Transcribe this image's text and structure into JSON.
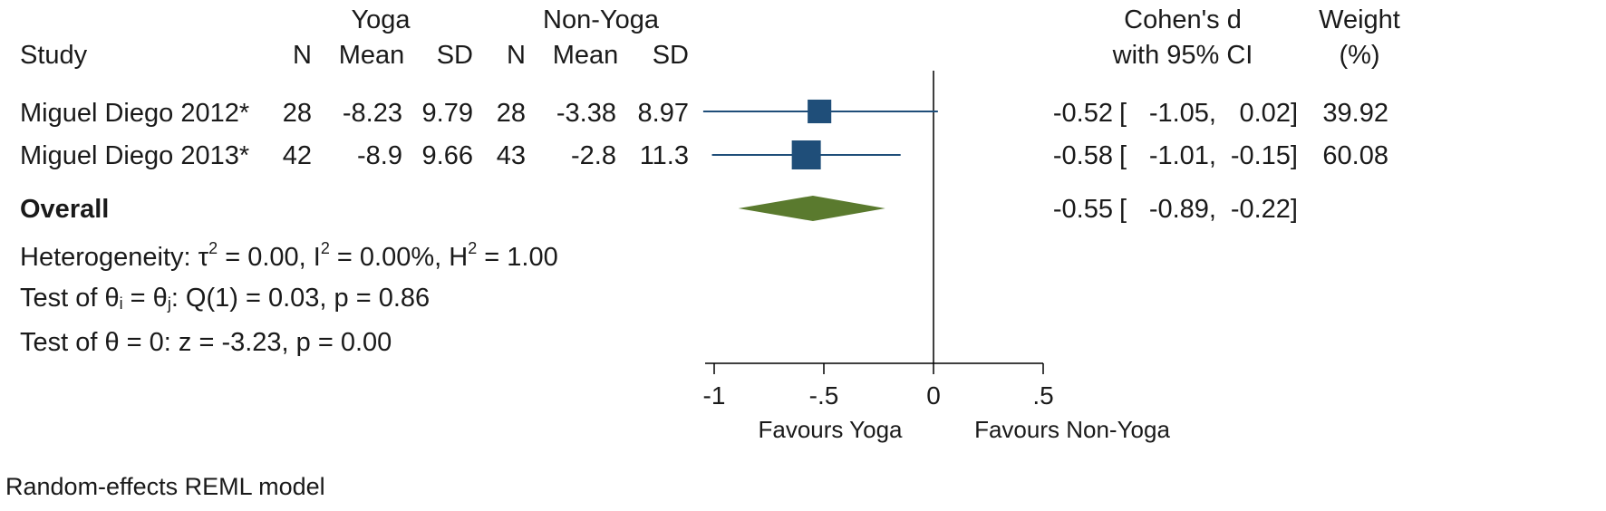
{
  "header": {
    "group1": "Yoga",
    "group2": "Non-Yoga",
    "study": "Study",
    "n": "N",
    "mean": "Mean",
    "sd": "SD",
    "effect_line1": "Cohen's d",
    "effect_line2": "with 95% CI",
    "weight_line1": "Weight",
    "weight_line2": "(%)"
  },
  "studies": [
    {
      "name": "Miguel Diego 2012*",
      "n1": "28",
      "mean1": "-8.23",
      "sd1": "9.79",
      "n2": "28",
      "mean2": "-3.38",
      "sd2": "8.97",
      "d": "-0.52",
      "lo": "-1.05,",
      "hi": "0.02]",
      "weight": "39.92"
    },
    {
      "name": "Miguel Diego 2013*",
      "n1": "42",
      "mean1": "-8.9",
      "sd1": "9.66",
      "n2": "43",
      "mean2": "-2.8",
      "sd2": "11.3",
      "d": "-0.58",
      "lo": "-1.01,",
      "hi": "-0.15]",
      "weight": "60.08"
    }
  ],
  "overall": {
    "label": "Overall",
    "d": "-0.55",
    "lo": "-0.89,",
    "hi": "-0.22]"
  },
  "heterogeneity": {
    "prefix": "Heterogeneity: τ",
    "tau_exp": "2",
    "tau_val": " = 0.00, I",
    "i_exp": "2",
    "i_val": " = 0.00%, H",
    "h_exp": "2",
    "h_val": " = 1.00"
  },
  "test_homog": {
    "part1": "Test of θ",
    "sub_i": "i",
    "part2": " = θ",
    "sub_j": "j",
    "part3": ": Q(1) = 0.03, p = 0.86"
  },
  "test_zero": "Test of θ = 0: z = -3.23, p = 0.00",
  "model": "Random-effects REML model",
  "favours_left": "Favours Yoga",
  "favours_right": "Favours Non-Yoga",
  "ci_bracket": "[",
  "colors": {
    "marker": "#1f4e79",
    "diamond": "#5a7a2e",
    "line": "#1f4e79",
    "axis": "#000000"
  },
  "chart_data": {
    "type": "forest",
    "x_ticks": [
      -1,
      -0.5,
      0,
      0.5
    ],
    "x_tick_labels": [
      "-1",
      "-.5",
      "0",
      ".5"
    ],
    "xlim": [
      -1,
      0.5
    ],
    "null_line": 0,
    "points": [
      {
        "study": "Miguel Diego 2012*",
        "d": -0.52,
        "lo": -1.05,
        "hi": 0.02,
        "weight": 39.92
      },
      {
        "study": "Miguel Diego 2013*",
        "d": -0.58,
        "lo": -1.01,
        "hi": -0.15,
        "weight": 60.08
      }
    ],
    "overall": {
      "d": -0.55,
      "lo": -0.89,
      "hi": -0.22
    }
  }
}
